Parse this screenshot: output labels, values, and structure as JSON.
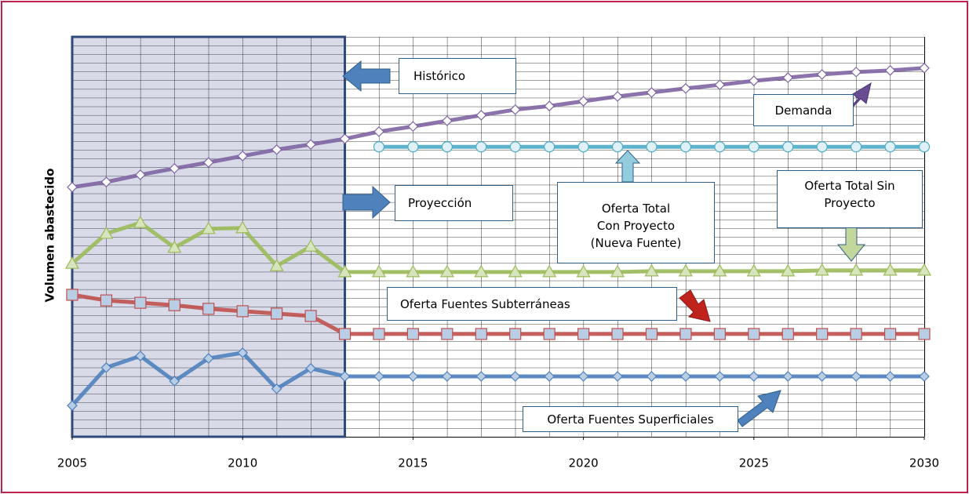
{
  "chart_data": {
    "type": "line",
    "ylabel": "Volumen abastecido",
    "x": [
      2005,
      2006,
      2007,
      2008,
      2009,
      2010,
      2011,
      2012,
      2013,
      2014,
      2015,
      2016,
      2017,
      2018,
      2019,
      2020,
      2021,
      2022,
      2023,
      2024,
      2025,
      2026,
      2027,
      2028,
      2029,
      2030
    ],
    "xlim": [
      2005,
      2030
    ],
    "xticks": [
      2005,
      2010,
      2015,
      2020,
      2025,
      2030
    ],
    "ylim": [
      0,
      100
    ],
    "grid": true,
    "historic_range": [
      2005,
      2013
    ],
    "annotations": [
      "Histórico",
      "Proyección"
    ],
    "series": [
      {
        "name": "Demanda",
        "color": "#8064a2",
        "marker": "diamond",
        "values": [
          62.4,
          63.7,
          65.5,
          67.1,
          68.6,
          70.2,
          71.8,
          73.1,
          74.5,
          76.3,
          77.6,
          79.0,
          80.4,
          81.8,
          82.7,
          83.9,
          85.1,
          86.1,
          87.1,
          88.0,
          89.0,
          89.8,
          90.6,
          91.2,
          91.6,
          92.2
        ]
      },
      {
        "name": "Oferta Total Con Proyecto (Nueva Fuente)",
        "color": "#4bacc6",
        "marker": "circle",
        "values": [
          null,
          null,
          null,
          null,
          null,
          null,
          null,
          null,
          null,
          72.5,
          72.5,
          72.5,
          72.5,
          72.5,
          72.5,
          72.5,
          72.5,
          72.5,
          72.5,
          72.5,
          72.5,
          72.5,
          72.5,
          72.5,
          72.5,
          72.5
        ]
      },
      {
        "name": "Oferta Total Sin Proyecto",
        "color": "#9bbb59",
        "marker": "triangle",
        "values": [
          43.3,
          50.8,
          53.5,
          47.3,
          52.0,
          52.2,
          42.7,
          47.6,
          41.2,
          41.2,
          41.2,
          41.2,
          41.2,
          41.2,
          41.2,
          41.2,
          41.2,
          41.4,
          41.4,
          41.4,
          41.4,
          41.4,
          41.6,
          41.6,
          41.6,
          41.6
        ]
      },
      {
        "name": "Oferta Fuentes Subterráneas",
        "color": "#c0504d",
        "marker": "square",
        "values": [
          35.5,
          34.1,
          33.5,
          32.9,
          32.0,
          31.4,
          30.8,
          30.2,
          25.7,
          25.7,
          25.7,
          25.7,
          25.7,
          25.7,
          25.7,
          25.7,
          25.7,
          25.7,
          25.7,
          25.7,
          25.7,
          25.7,
          25.7,
          25.7,
          25.7,
          25.7
        ]
      },
      {
        "name": "Oferta Fuentes Superficiales",
        "color": "#4f81bd",
        "marker": "diamond",
        "values": [
          7.8,
          17.3,
          20.2,
          13.9,
          19.6,
          21.0,
          12.0,
          17.1,
          15.1,
          15.1,
          15.1,
          15.1,
          15.1,
          15.1,
          15.1,
          15.1,
          15.1,
          15.1,
          15.1,
          15.1,
          15.1,
          15.1,
          15.1,
          15.1,
          15.1,
          15.1
        ]
      }
    ]
  }
}
